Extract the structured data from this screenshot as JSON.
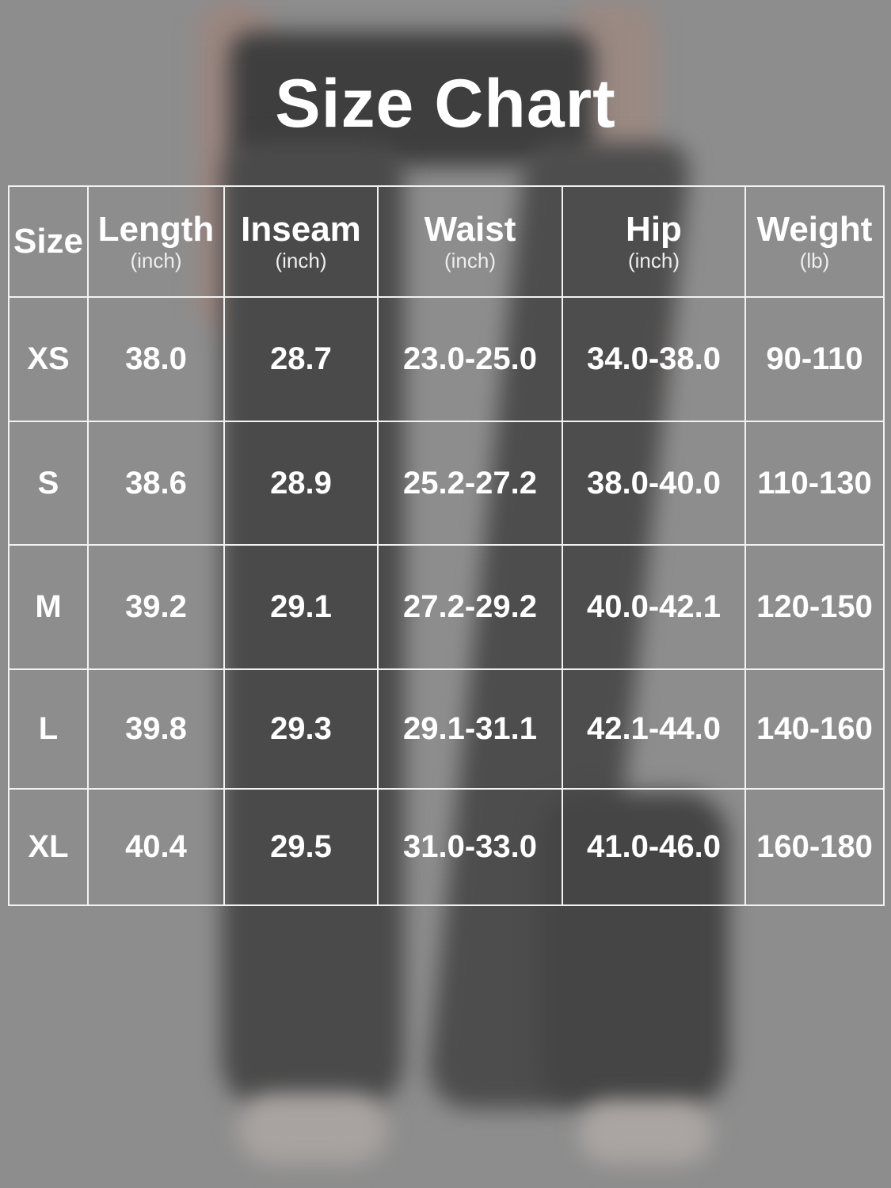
{
  "title": "Size Chart",
  "columns": [
    {
      "label": "Size",
      "unit": ""
    },
    {
      "label": "Length",
      "unit": "(inch)"
    },
    {
      "label": "Inseam",
      "unit": "(inch)"
    },
    {
      "label": "Waist",
      "unit": "(inch)"
    },
    {
      "label": "Hip",
      "unit": "(inch)"
    },
    {
      "label": "Weight",
      "unit": "(lb)"
    }
  ],
  "rows": [
    [
      "XS",
      "38.0",
      "28.7",
      "23.0-25.0",
      "34.0-38.0",
      "90-110"
    ],
    [
      "S",
      "38.6",
      "28.9",
      "25.2-27.2",
      "38.0-40.0",
      "110-130"
    ],
    [
      "M",
      "39.2",
      "29.1",
      "27.2-29.2",
      "40.0-42.1",
      "120-150"
    ],
    [
      "L",
      "39.8",
      "29.3",
      "29.1-31.1",
      "42.1-44.0",
      "140-160"
    ],
    [
      "XL",
      "40.4",
      "29.5",
      "31.0-33.0",
      "41.0-46.0",
      "160-180"
    ]
  ]
}
